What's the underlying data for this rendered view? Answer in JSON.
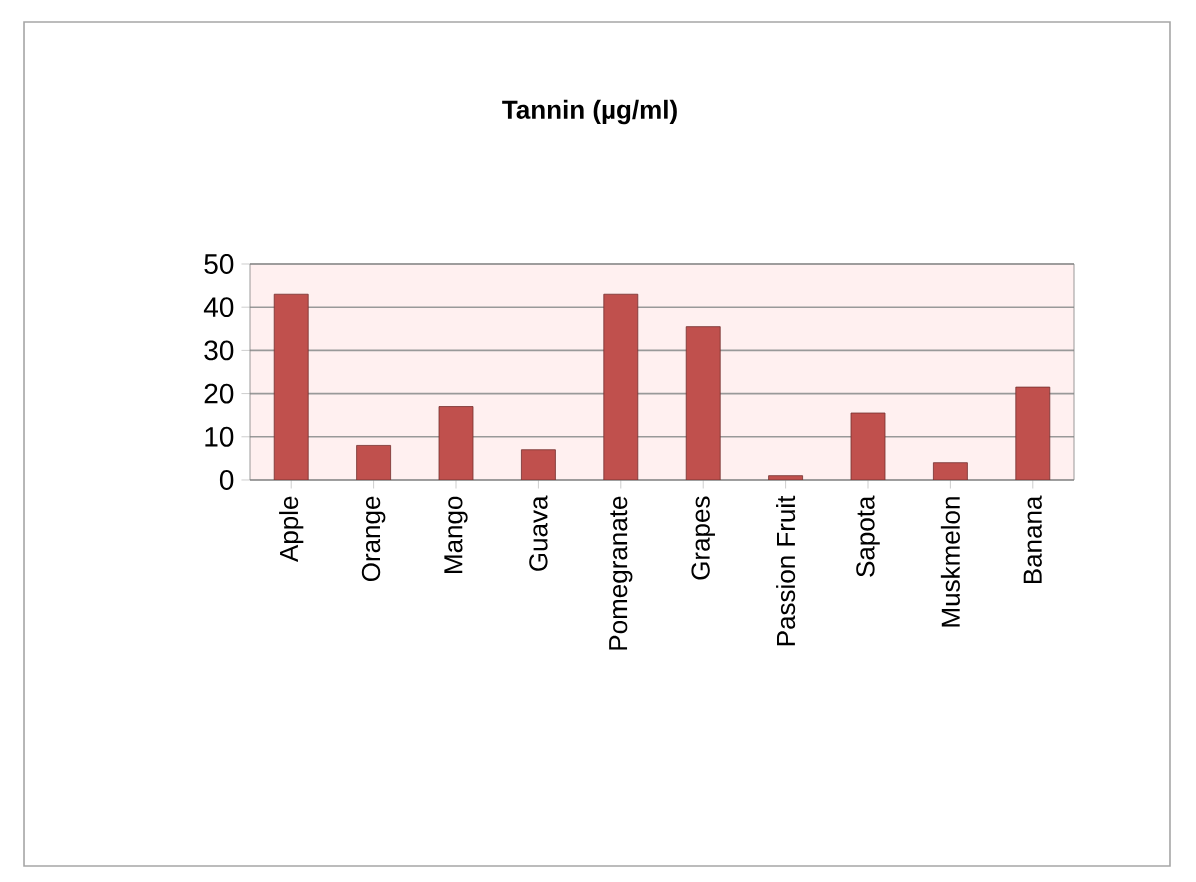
{
  "chart_data": {
    "type": "bar",
    "title": "Tannin (µg/ml)",
    "categories": [
      "Apple",
      "Orange",
      "Mango",
      "Guava",
      "Pomegranate",
      "Grapes",
      "Passion Fruit",
      "Sapota",
      "Muskmelon",
      "Banana"
    ],
    "values": [
      43,
      8,
      17,
      7,
      43,
      35.5,
      1,
      15.5,
      4,
      21.5
    ],
    "color": "#c0504d",
    "ylim": [
      0,
      50
    ],
    "yticks": [
      0,
      10,
      20,
      30,
      40,
      50
    ],
    "grid": "y"
  }
}
